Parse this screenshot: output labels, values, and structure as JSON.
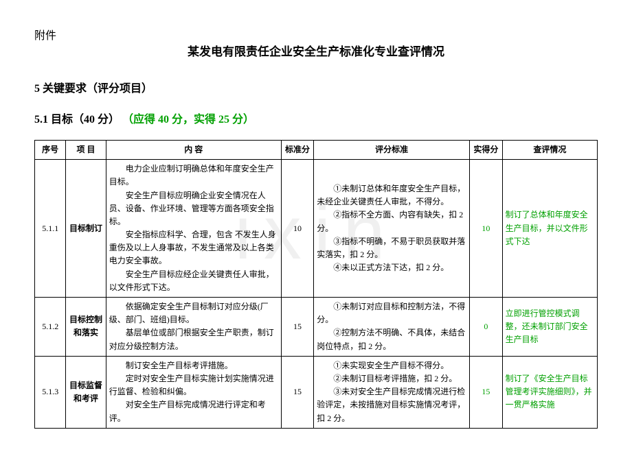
{
  "colors": {
    "text": "#000000",
    "accent_green": "#00a000",
    "background": "#ffffff",
    "border": "#000000",
    "watermark": "rgba(0,0,0,0.06)"
  },
  "header": {
    "attachment_label": "附件",
    "main_title": "某发电有限责任企业安全生产标准化专业查评情况"
  },
  "section": {
    "heading": "5  关键要求（评分项目）"
  },
  "subsection": {
    "prefix": "5.1  目标（40 分）",
    "score_note": "（应得 40 分，实得 25 分）"
  },
  "watermark_text": "ixin",
  "table": {
    "headers": {
      "seq": "序号",
      "item": "项  目",
      "content": "内    容",
      "std_score": "标准分",
      "criteria": "评分标准",
      "act_score": "实得分",
      "review": "查评情况"
    },
    "rows": [
      {
        "seq": "5.1.1",
        "item": "目标制订",
        "content_lines": [
          "电力企业应制订明确总体和年度安全生产目标。",
          "安全生产目标应明确企业安全情况在人员、设备、作业环境、管理等方面各项安全指标。",
          "安全指标应科学、合理，包含 不发生人身重伤及以上人身事故，不发生通常及以上各类电力安全事故。",
          "安全生产目标应经企业关键责任人审批，以文件形式下达。"
        ],
        "std_score": "10",
        "criteria_lines": [
          "①未制订总体和年度安全生产目标，未经企业关键责任人审批，不得分。",
          "②指标不全方面、内容有缺失，扣 2 分。",
          "③指标不明确，不易于职员获取并落实落实，扣 2 分。",
          "④未以正式方法下达，扣 2 分。"
        ],
        "act_score": "10",
        "review": "制订了总体和年度安全生产目标，并以文件形式下达"
      },
      {
        "seq": "5.1.2",
        "item": "目标控制和落实",
        "content_lines": [
          "依据确定安全生产目标制订对应分级(厂级、部门、班组)目标。",
          "基层单位或部门根据安全生产职责，制订对应分级控制方法。"
        ],
        "std_score": "15",
        "criteria_lines": [
          "①未制订对应目标和控制方法，不得分。",
          "②控制方法不明确、不具体，未结合岗位特点，扣 2 分。"
        ],
        "act_score": "0",
        "review": "立即进行管控模式调整，还未制订部门安全生产目标"
      },
      {
        "seq": "5.1.3",
        "item": "目标监督和考评",
        "content_lines": [
          "制订安全生产目标考评措施。",
          "定时对安全生产目标实施计划实施情况进行监督、检验和纠偏。",
          "对安全生产目标完成情况进行评定和考评。"
        ],
        "std_score": "15",
        "criteria_lines": [
          "①未实现安全生产目标不得分。",
          "②未制订目标考评措施，扣 2 分。",
          "③未对安全生产目标完成情况进行检验评定，未按措施对目标实施情况考评，扣 2 分。"
        ],
        "act_score": "15",
        "review": "制订了《安全生产目标管理考评实施细则》，并一贯严格实施"
      }
    ]
  }
}
